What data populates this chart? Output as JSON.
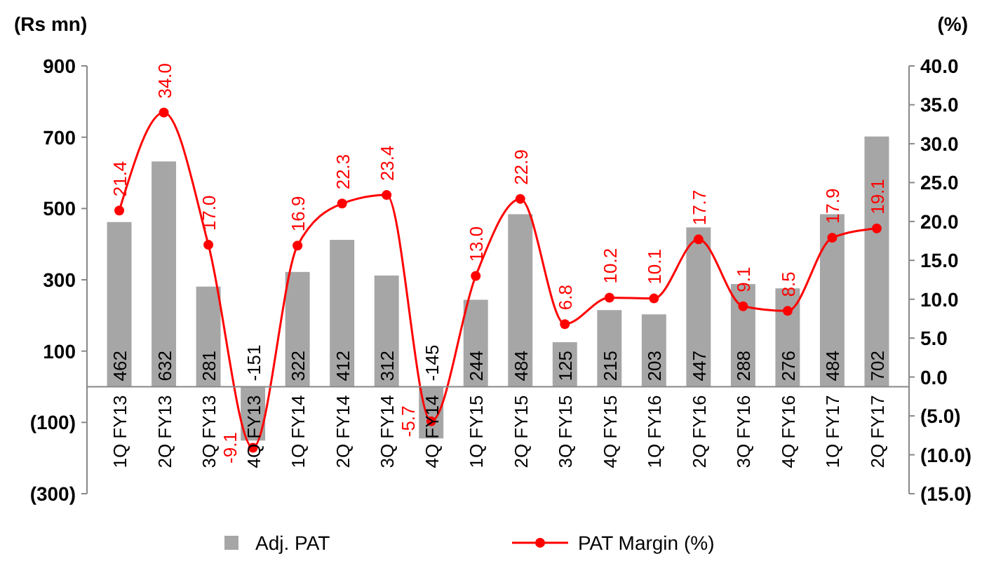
{
  "chart_data": {
    "type": "bar",
    "ylabel": "(Rs mn)",
    "y2label": "(%)",
    "categories": [
      "1Q FY13",
      "2Q FY13",
      "3Q FY13",
      "4Q FY13",
      "1Q FY14",
      "2Q FY14",
      "3Q FY14",
      "4Q FY14",
      "1Q FY15",
      "2Q FY15",
      "3Q FY15",
      "4Q FY15",
      "1Q FY16",
      "2Q FY16",
      "3Q FY16",
      "4Q FY16",
      "1Q FY17",
      "2Q FY17"
    ],
    "series": [
      {
        "name": "Adj. PAT",
        "color": "#a6a6a6",
        "values": [
          462,
          632,
          281,
          -151,
          322,
          412,
          312,
          -145,
          244,
          484,
          125,
          215,
          203,
          447,
          288,
          276,
          484,
          702
        ],
        "value_labels": [
          "462",
          "632",
          "281",
          "-151",
          "322",
          "412",
          "312",
          "-145",
          "244",
          "484",
          "125",
          "215",
          "203",
          "447",
          "288",
          "276",
          "484",
          "702"
        ]
      },
      {
        "name": "PAT Margin (%)",
        "type": "line",
        "axis": "y2",
        "color": "#ff0000",
        "marker": "circle",
        "values": [
          21.4,
          34.0,
          17.0,
          -9.1,
          16.9,
          22.3,
          23.4,
          -5.7,
          13.0,
          22.9,
          6.8,
          10.2,
          10.1,
          17.7,
          9.1,
          8.5,
          17.9,
          19.1
        ],
        "value_labels": [
          "21.4",
          "34.0",
          "17.0",
          "-9.1",
          "16.9",
          "22.3",
          "23.4",
          "-5.7",
          "13.0",
          "22.9",
          "6.8",
          "10.2",
          "10.1",
          "17.7",
          "9.1",
          "8.5",
          "17.9",
          "19.1"
        ]
      }
    ],
    "ylim": [
      -300,
      900
    ],
    "yticks": [
      {
        "value": -300,
        "label": "(300)"
      },
      {
        "value": -100,
        "label": "(100)"
      },
      100,
      300,
      500,
      700,
      900
    ],
    "y2lim": [
      -15,
      40
    ],
    "y2ticks": [
      {
        "value": -15,
        "label": "(15.0)"
      },
      {
        "value": -10,
        "label": "(10.0)"
      },
      {
        "value": -5,
        "label": "(5.0)"
      },
      {
        "value": 0,
        "label": "0.0"
      },
      {
        "value": 5,
        "label": "5.0"
      },
      {
        "value": 10,
        "label": "10.0"
      },
      {
        "value": 15,
        "label": "15.0"
      },
      {
        "value": 20,
        "label": "20.0"
      },
      {
        "value": 25,
        "label": "25.0"
      },
      {
        "value": 30,
        "label": "30.0"
      },
      {
        "value": 35,
        "label": "35.0"
      },
      {
        "value": 40,
        "label": "40.0"
      }
    ],
    "grid": false,
    "legend": "bottom"
  }
}
